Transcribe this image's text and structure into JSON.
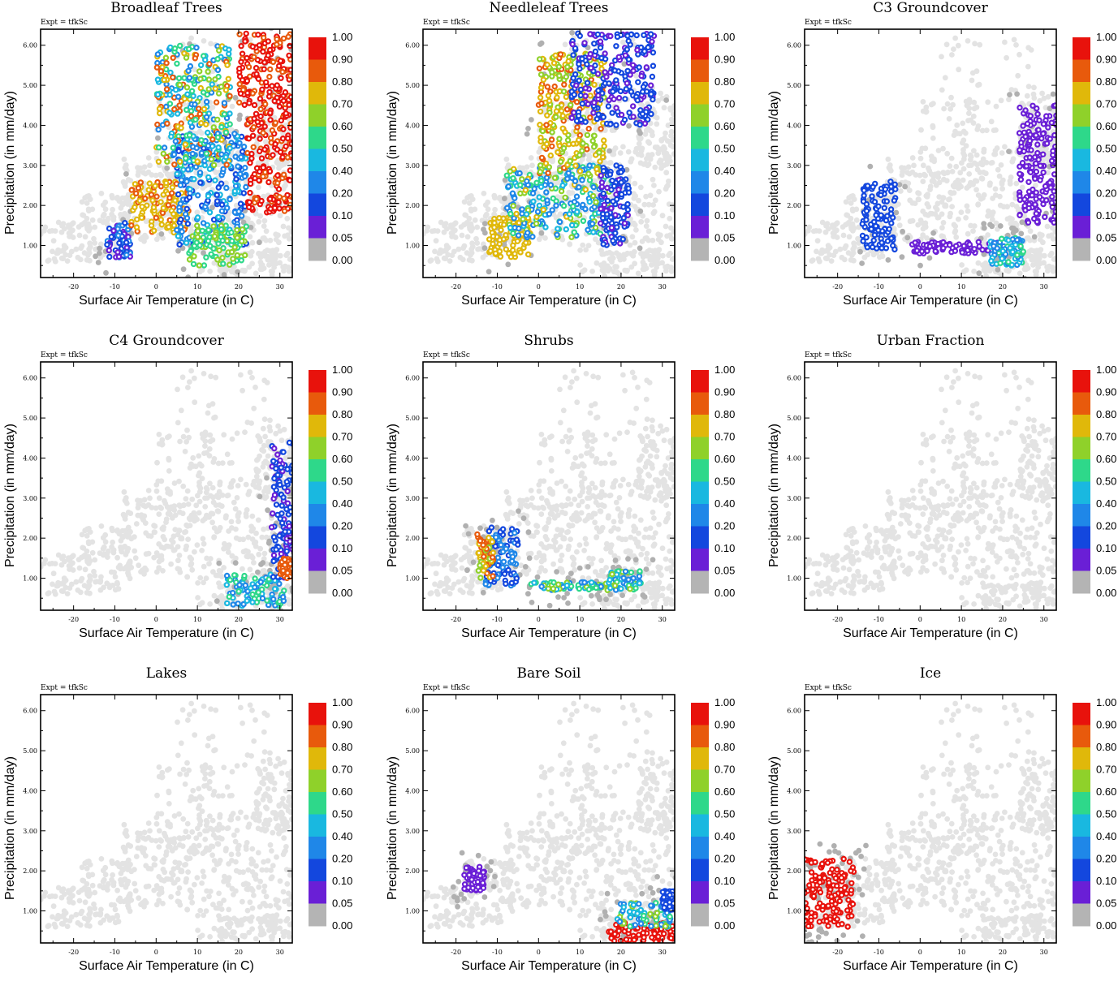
{
  "figure": {
    "expt_label": "Expt = tfkSc",
    "xlabel": "Surface Air Temperature (in C)",
    "ylabel": "Precipitation (in mm/day)",
    "x_ticks": [
      "-20",
      "-10",
      "0",
      "10",
      "20",
      "30"
    ],
    "y_ticks": [
      "1.00",
      "2.00",
      "3.00",
      "4.00",
      "5.00",
      "6.00"
    ]
  },
  "colorbar": {
    "labels": [
      "1.00",
      "0.90",
      "0.80",
      "0.70",
      "0.60",
      "0.50",
      "0.40",
      "0.20",
      "0.10",
      "0.05",
      "0.00"
    ],
    "colors": [
      "#e8120c",
      "#e85a0c",
      "#e0b80a",
      "#8fd12a",
      "#2ed88a",
      "#19b8e0",
      "#1f87e8",
      "#1347de",
      "#6a1fd6",
      "#b4b4b4"
    ],
    "background_point_color": "#e3e3e3",
    "zero_point_color": "#b0b0b0"
  },
  "chart_data": [
    {
      "type": "scatter",
      "title": "Broadleaf Trees",
      "xlabel": "Surface Air Temperature (in C)",
      "ylabel": "Precipitation (in mm/day)",
      "xlim": [
        -28,
        33
      ],
      "ylim": [
        0.2,
        6.4
      ],
      "clusters": [
        {
          "x_range": [
            -12,
            -6
          ],
          "y_range": [
            0.7,
            1.6
          ],
          "value_range": [
            0.05,
            0.3
          ]
        },
        {
          "x_range": [
            -6,
            8
          ],
          "y_range": [
            1.3,
            2.6
          ],
          "value_range": [
            0.7,
            0.85
          ]
        },
        {
          "x_range": [
            5,
            22
          ],
          "y_range": [
            1.0,
            3.8
          ],
          "value_range": [
            0.1,
            0.5
          ]
        },
        {
          "x_range": [
            0,
            18
          ],
          "y_range": [
            3.0,
            6.0
          ],
          "value_range": [
            0.3,
            0.9
          ]
        },
        {
          "x_range": [
            22,
            33
          ],
          "y_range": [
            1.8,
            4.5
          ],
          "value_range": [
            0.85,
            1.0
          ]
        },
        {
          "x_range": [
            20,
            33
          ],
          "y_range": [
            4.5,
            6.3
          ],
          "value_range": [
            0.85,
            1.0
          ]
        },
        {
          "x_range": [
            8,
            22
          ],
          "y_range": [
            0.5,
            1.5
          ],
          "value_range": [
            0.5,
            0.7
          ]
        }
      ]
    },
    {
      "type": "scatter",
      "title": "Needleleaf Trees",
      "xlabel": "Surface Air Temperature (in C)",
      "ylabel": "Precipitation (in mm/day)",
      "xlim": [
        -28,
        33
      ],
      "ylim": [
        0.2,
        6.4
      ],
      "clusters": [
        {
          "x_range": [
            -12,
            -2
          ],
          "y_range": [
            0.7,
            1.7
          ],
          "value_range": [
            0.7,
            0.78
          ]
        },
        {
          "x_range": [
            -8,
            18
          ],
          "y_range": [
            1.2,
            3.0
          ],
          "value_range": [
            0.2,
            0.75
          ]
        },
        {
          "x_range": [
            0,
            16
          ],
          "y_range": [
            2.8,
            5.8
          ],
          "value_range": [
            0.6,
            0.85
          ]
        },
        {
          "x_range": [
            15,
            22
          ],
          "y_range": [
            1.0,
            3.0
          ],
          "value_range": [
            0.05,
            0.2
          ]
        },
        {
          "x_range": [
            8,
            28
          ],
          "y_range": [
            4.0,
            6.3
          ],
          "value_range": [
            0.05,
            0.2
          ]
        }
      ]
    },
    {
      "type": "scatter",
      "title": "C3 Groundcover",
      "xlabel": "Surface Air Temperature (in C)",
      "ylabel": "Precipitation (in mm/day)",
      "xlim": [
        -28,
        33
      ],
      "ylim": [
        0.2,
        6.4
      ],
      "clusters": [
        {
          "x_range": [
            -14,
            -6
          ],
          "y_range": [
            0.9,
            2.6
          ],
          "value_range": [
            0.1,
            0.2
          ]
        },
        {
          "x_range": [
            -2,
            20
          ],
          "y_range": [
            0.8,
            1.1
          ],
          "value_range": [
            0.05,
            0.07
          ]
        },
        {
          "x_range": [
            17,
            25
          ],
          "y_range": [
            0.5,
            1.2
          ],
          "value_range": [
            0.3,
            0.55
          ]
        },
        {
          "x_range": [
            24,
            33
          ],
          "y_range": [
            1.5,
            4.5
          ],
          "value_range": [
            0.05,
            0.07
          ]
        }
      ]
    },
    {
      "type": "scatter",
      "title": "C4 Groundcover",
      "xlabel": "Surface Air Temperature (in C)",
      "ylabel": "Precipitation (in mm/day)",
      "xlim": [
        -28,
        33
      ],
      "ylim": [
        0.2,
        6.4
      ],
      "clusters": [
        {
          "x_range": [
            17,
            31
          ],
          "y_range": [
            0.3,
            1.1
          ],
          "value_range": [
            0.3,
            0.6
          ]
        },
        {
          "x_range": [
            28,
            33
          ],
          "y_range": [
            1.0,
            4.4
          ],
          "value_range": [
            0.05,
            0.2
          ]
        },
        {
          "x_range": [
            30,
            33
          ],
          "y_range": [
            1.0,
            1.5
          ],
          "value_range": [
            0.8,
            0.9
          ]
        }
      ]
    },
    {
      "type": "scatter",
      "title": "Shrubs",
      "xlabel": "Surface Air Temperature (in C)",
      "ylabel": "Precipitation (in mm/day)",
      "xlim": [
        -28,
        33
      ],
      "ylim": [
        0.2,
        6.4
      ],
      "clusters": [
        {
          "x_range": [
            -13,
            -5
          ],
          "y_range": [
            0.8,
            2.3
          ],
          "value_range": [
            0.1,
            0.3
          ]
        },
        {
          "x_range": [
            -15,
            -11
          ],
          "y_range": [
            1.0,
            2.1
          ],
          "value_range": [
            0.65,
            0.9
          ]
        },
        {
          "x_range": [
            -2,
            17
          ],
          "y_range": [
            0.7,
            0.9
          ],
          "value_range": [
            0.3,
            0.7
          ]
        },
        {
          "x_range": [
            17,
            25
          ],
          "y_range": [
            0.7,
            1.2
          ],
          "value_range": [
            0.2,
            0.7
          ]
        }
      ]
    },
    {
      "type": "scatter",
      "title": "Urban Fraction",
      "xlabel": "Surface Air Temperature (in C)",
      "ylabel": "Precipitation (in mm/day)",
      "xlim": [
        -28,
        33
      ],
      "ylim": [
        0.2,
        6.4
      ],
      "clusters": []
    },
    {
      "type": "scatter",
      "title": "Lakes",
      "xlabel": "Surface Air Temperature (in C)",
      "ylabel": "Precipitation (in mm/day)",
      "xlim": [
        -28,
        33
      ],
      "ylim": [
        0.2,
        6.4
      ],
      "clusters": []
    },
    {
      "type": "scatter",
      "title": "Bare Soil",
      "xlabel": "Surface Air Temperature (in C)",
      "ylabel": "Precipitation (in mm/day)",
      "xlim": [
        -28,
        33
      ],
      "ylim": [
        0.2,
        6.4
      ],
      "clusters": [
        {
          "x_range": [
            17,
            33
          ],
          "y_range": [
            0.2,
            0.7
          ],
          "value_range": [
            0.9,
            1.0
          ]
        },
        {
          "x_range": [
            19,
            32
          ],
          "y_range": [
            0.6,
            1.2
          ],
          "value_range": [
            0.2,
            0.7
          ]
        },
        {
          "x_range": [
            -18,
            -13
          ],
          "y_range": [
            1.5,
            2.1
          ],
          "value_range": [
            0.05,
            0.07
          ]
        },
        {
          "x_range": [
            30,
            33
          ],
          "y_range": [
            1.0,
            1.5
          ],
          "value_range": [
            0.1,
            0.2
          ]
        }
      ]
    },
    {
      "type": "scatter",
      "title": "Ice",
      "xlabel": "Surface Air Temperature (in C)",
      "ylabel": "Precipitation (in mm/day)",
      "xlim": [
        -28,
        33
      ],
      "ylim": [
        0.2,
        6.4
      ],
      "clusters": [
        {
          "x_range": [
            -28,
            -16
          ],
          "y_range": [
            0.6,
            2.3
          ],
          "value_range": [
            0.95,
            1.0
          ]
        }
      ]
    }
  ]
}
